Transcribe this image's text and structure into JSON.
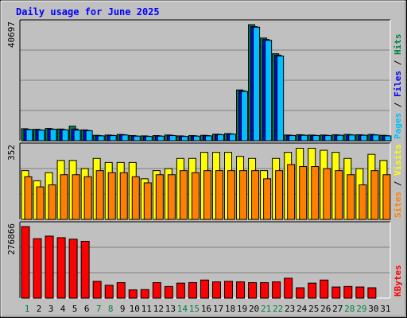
{
  "chart_data": {
    "type": "bar",
    "title": "Daily usage for June 2025",
    "days": [
      "1",
      "2",
      "3",
      "4",
      "5",
      "6",
      "7",
      "8",
      "9",
      "10",
      "11",
      "12",
      "13",
      "14",
      "15",
      "16",
      "17",
      "18",
      "19",
      "20",
      "21",
      "22",
      "23",
      "24",
      "25",
      "26",
      "27",
      "28",
      "29",
      "30",
      "31"
    ],
    "weekend_days": [
      "1",
      "7",
      "8",
      "14",
      "15",
      "21",
      "22",
      "28",
      "29"
    ],
    "panels": [
      {
        "id": "hits",
        "max_label": "40697",
        "ymax": 40697,
        "legend": [
          {
            "label": "Pages",
            "color": "#00c0ff"
          },
          {
            "label": "Files",
            "color": "#0000ff"
          },
          {
            "label": "Hits",
            "color": "#008040"
          }
        ],
        "series": [
          {
            "name": "Hits",
            "color": "#008040",
            "values": [
              4200,
              4000,
              4300,
              4100,
              5100,
              3800,
              1900,
              2000,
              2200,
              1800,
              1700,
              1800,
              2000,
              1700,
              1800,
              1900,
              2300,
              2500,
              17800,
              40697,
              36000,
              30500,
              2000,
              2100,
              2000,
              2000,
              2100,
              2200,
              2100,
              2200,
              1900
            ]
          },
          {
            "name": "Files",
            "color": "#0000ff",
            "values": [
              4000,
              3800,
              4100,
              3900,
              4100,
              3600,
              1800,
              1900,
              2100,
              1700,
              1600,
              1700,
              1900,
              1600,
              1700,
              1800,
              2200,
              2400,
              17500,
              40000,
              35500,
              30000,
              1900,
              2000,
              1900,
              1900,
              2000,
              2100,
              2000,
              2100,
              1800
            ]
          },
          {
            "name": "Pages",
            "color": "#00c0ff",
            "values": [
              3900,
              3700,
              4000,
              3800,
              3700,
              3500,
              1700,
              1800,
              2000,
              1600,
              1500,
              1600,
              1800,
              1500,
              1600,
              1700,
              2100,
              2300,
              17300,
              39800,
              35200,
              29700,
              1800,
              1900,
              1800,
              1800,
              1900,
              2000,
              1900,
              2000,
              1700
            ]
          }
        ]
      },
      {
        "id": "visits",
        "max_label": "352",
        "ymax": 352,
        "legend": [
          {
            "label": "Sites",
            "color": "#ff8000"
          },
          {
            "label": "Visits",
            "color": "#ffff00"
          }
        ],
        "series": [
          {
            "name": "Visits",
            "color": "#ffff00",
            "values": [
              240,
              190,
              230,
              290,
              290,
              250,
              300,
              280,
              280,
              280,
              200,
              240,
              250,
              300,
              300,
              330,
              330,
              330,
              310,
              300,
              240,
              300,
              330,
              350,
              350,
              340,
              330,
              300,
              250,
              320,
              290
            ]
          },
          {
            "name": "Sites",
            "color": "#ff8000",
            "values": [
              210,
              160,
              170,
              220,
              220,
              210,
              240,
              230,
              230,
              210,
              180,
              220,
              220,
              240,
              230,
              240,
              240,
              240,
              240,
              240,
              200,
              240,
              270,
              260,
              260,
              250,
              240,
              220,
              170,
              240,
              220
            ]
          }
        ]
      },
      {
        "id": "kbytes",
        "max_label": "276866",
        "ymax": 276866,
        "legend": [
          {
            "label": "KBytes",
            "color": "#ff0000"
          }
        ],
        "series": [
          {
            "name": "KBytes",
            "color": "#ff0000",
            "values": [
              276866,
              230000,
              240000,
              234000,
              228000,
              220000,
              65000,
              50000,
              60000,
              32000,
              33000,
              60000,
              45000,
              58000,
              60000,
              70000,
              63000,
              65000,
              63000,
              60000,
              60000,
              63000,
              77000,
              40000,
              58000,
              70000,
              43000,
              45000,
              43000,
              40000,
              0
            ]
          }
        ]
      }
    ]
  }
}
